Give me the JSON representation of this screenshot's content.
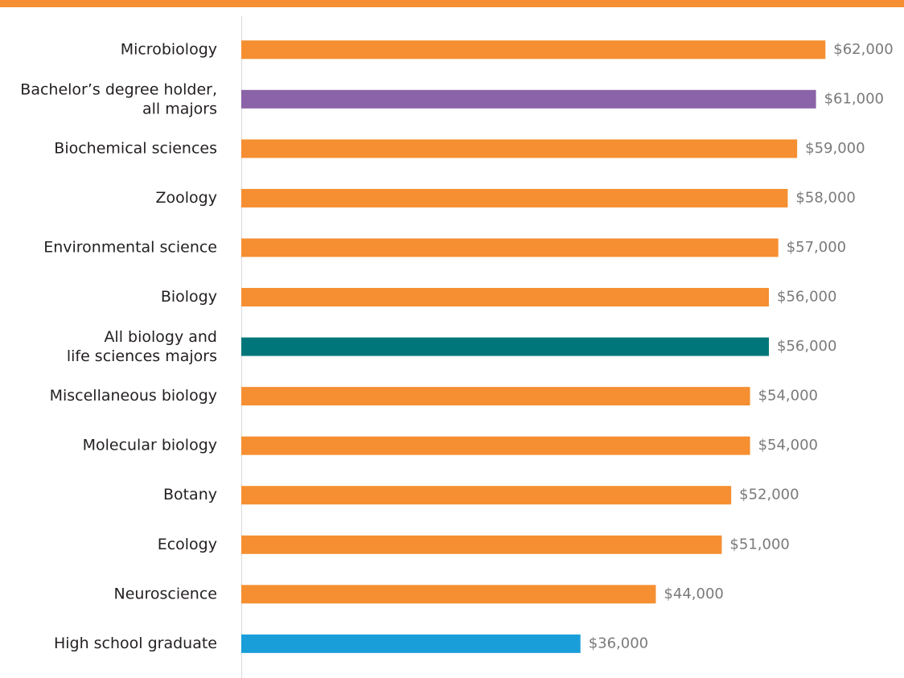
{
  "chart_data": {
    "type": "barh",
    "categories": [
      "Microbiology",
      "Bachelor’s degree holder,\nall majors",
      "Biochemical sciences",
      "Zoology",
      "Environmental science",
      "Biology",
      "All biology and\nlife sciences majors",
      "Miscellaneous biology",
      "Molecular biology",
      "Botany",
      "Ecology",
      "Neuroscience",
      "High school graduate"
    ],
    "values": [
      62000,
      61000,
      59000,
      58000,
      57000,
      56000,
      56000,
      54000,
      54000,
      52000,
      51000,
      44000,
      36000
    ],
    "value_labels": [
      "$62,000",
      "$61,000",
      "$59,000",
      "$58,000",
      "$57,000",
      "$56,000",
      "$56,000",
      "$54,000",
      "$54,000",
      "$52,000",
      "$51,000",
      "$44,000",
      "$36,000"
    ],
    "colors": [
      "#f58f31",
      "#8b63a8",
      "#f58f31",
      "#f58f31",
      "#f58f31",
      "#f58f31",
      "#00767a",
      "#f58f31",
      "#f58f31",
      "#f58f31",
      "#f58f31",
      "#f58f31",
      "#1a9ed9"
    ],
    "xlim": [
      0,
      70000
    ]
  }
}
